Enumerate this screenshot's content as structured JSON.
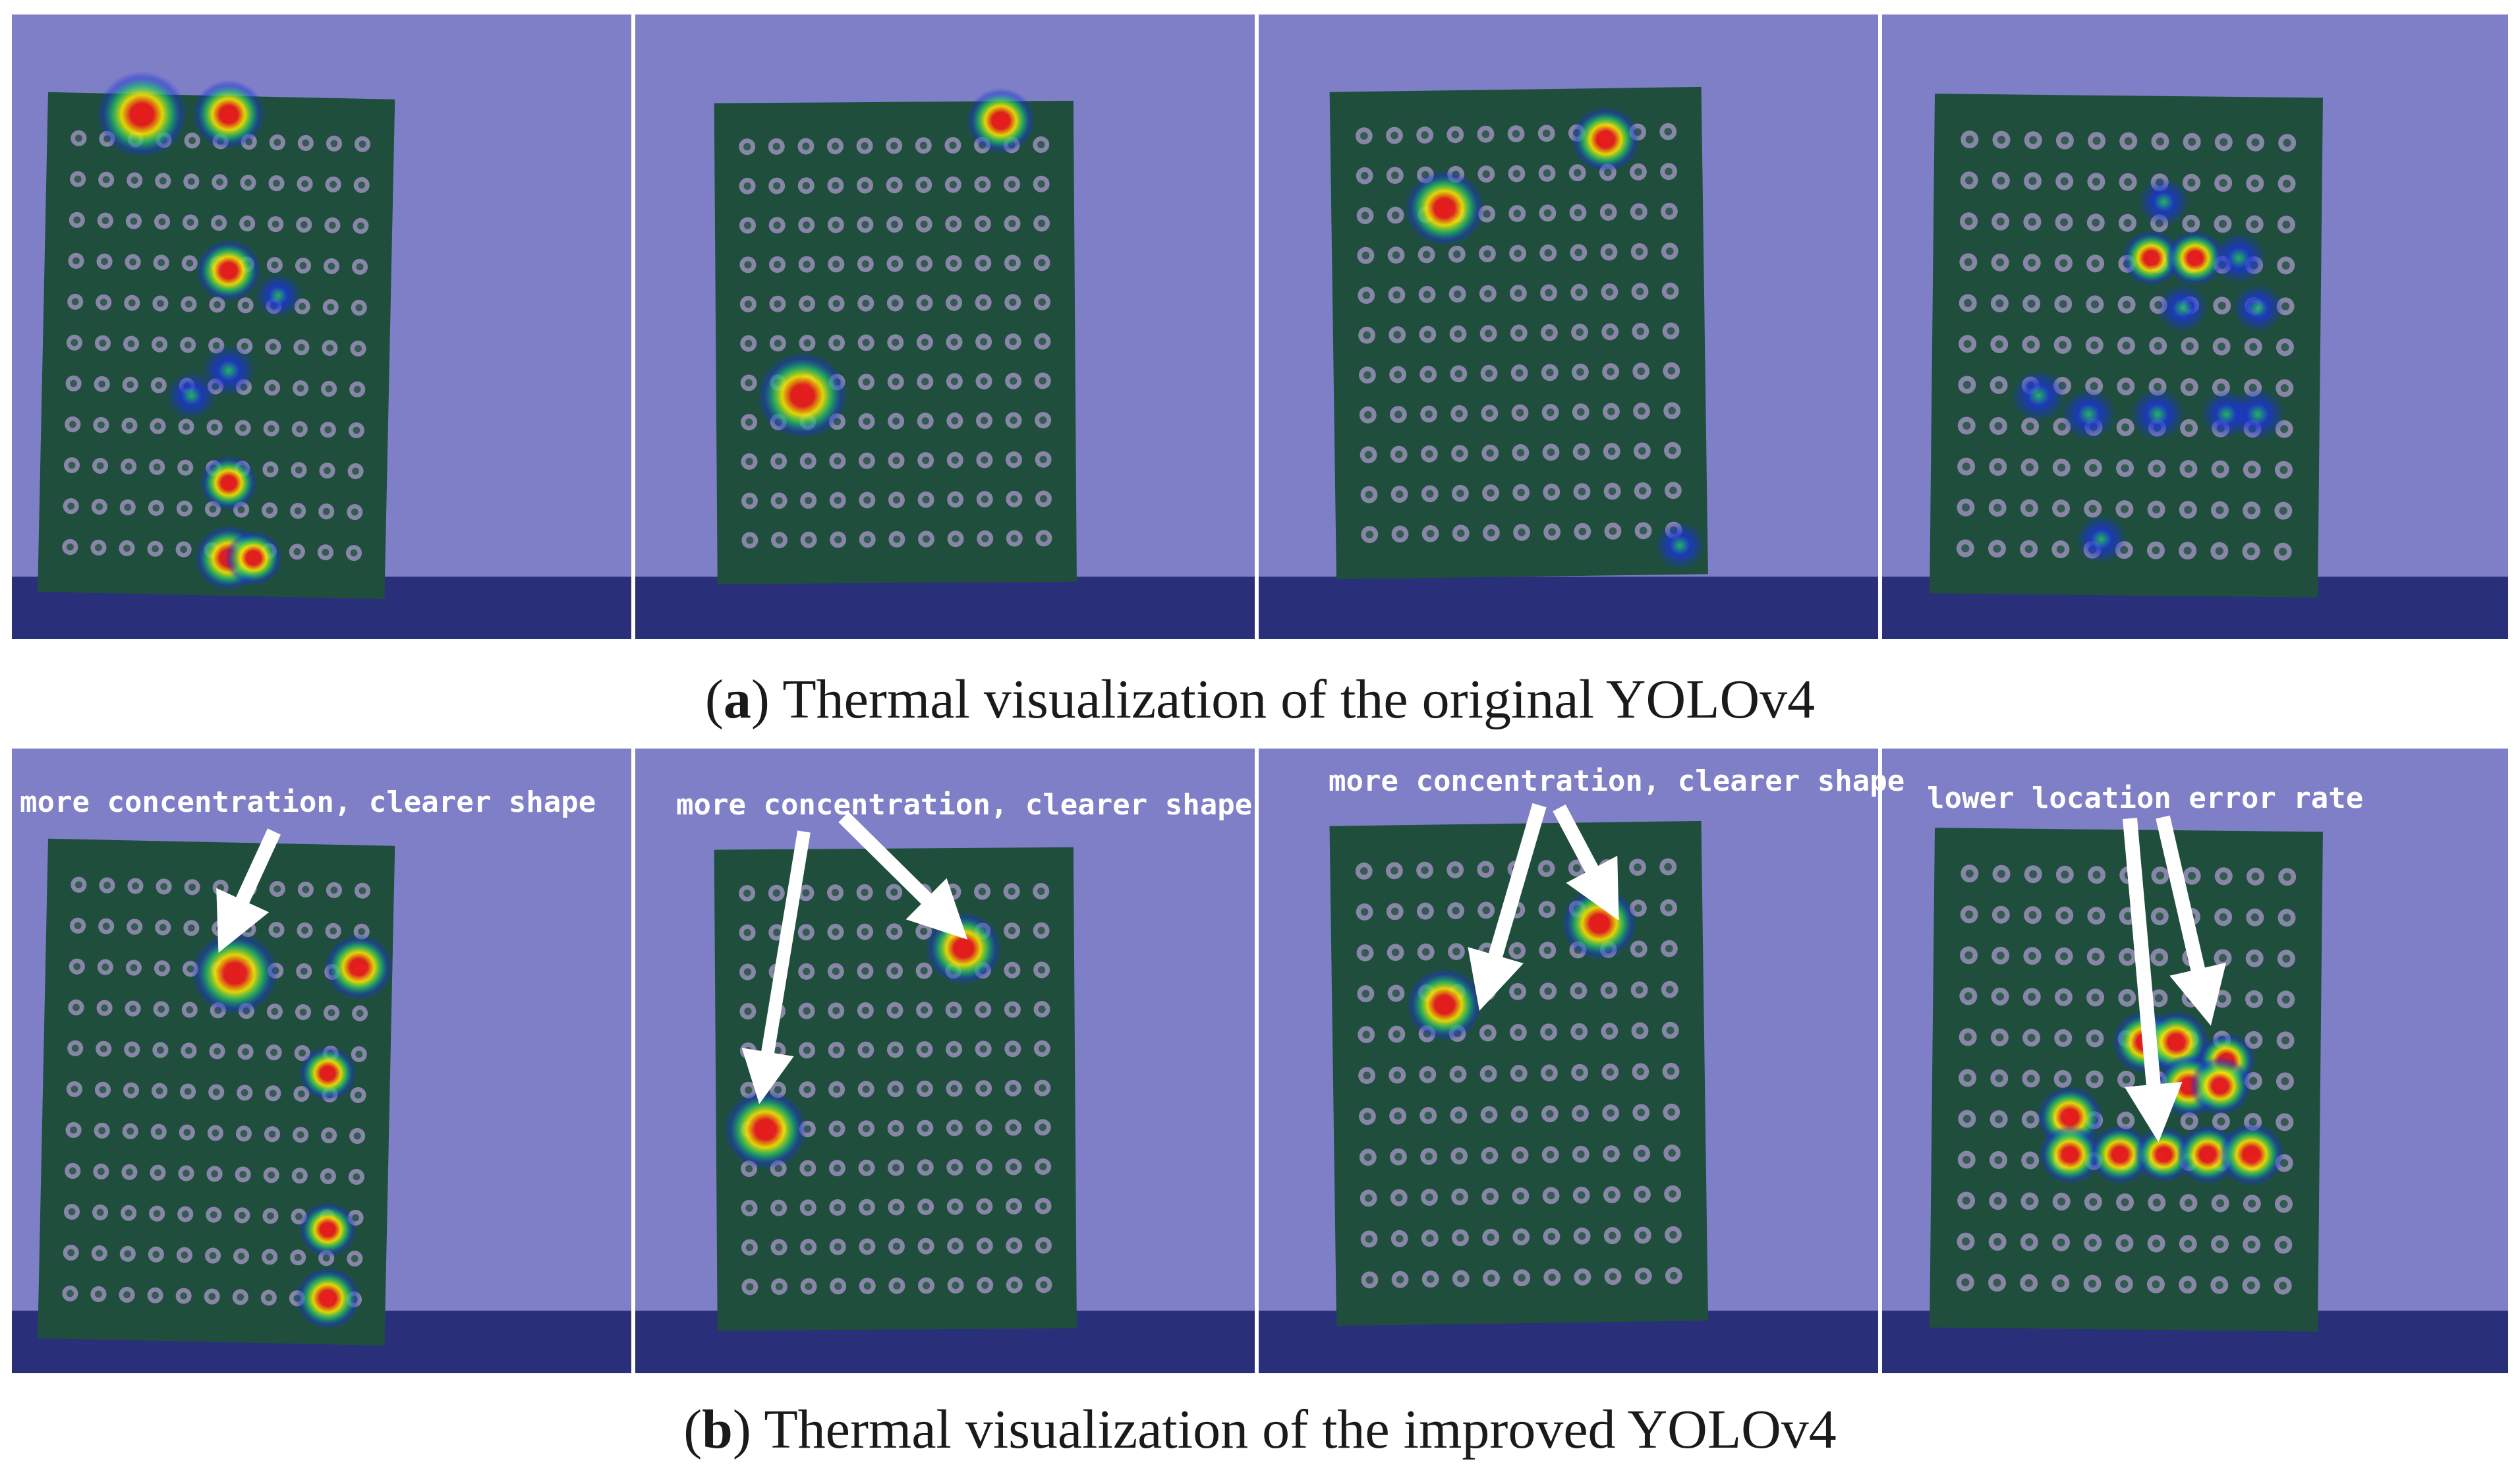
{
  "figure": {
    "captions": {
      "a": {
        "letter": "a",
        "text": ") Thermal visualization of the original YOLOv4"
      },
      "b": {
        "letter": "b",
        "text": ") Thermal visualization of the improved YOLOv4"
      }
    },
    "annotations": [
      "more concentration, clearer shape",
      "more concentration, clearer shape",
      "more concentration, clearer shape",
      "lower location error rate"
    ],
    "colors": {
      "overlay_background": "#7f7fc8",
      "board": "#1f4f3c",
      "bottom_band": "#2a2f7a",
      "pad": "#9a8fb8",
      "hot_core": "#e81c1c",
      "hot_mid": "#f5e600",
      "hot_outer": "#23c06a",
      "cold": "#1a33d8"
    },
    "rows": {
      "a": {
        "hotspots": [
          [
            [
              0.21,
              0.16,
              1.6
            ],
            [
              0.35,
              0.16,
              1.1
            ],
            [
              0.35,
              0.41,
              0.9
            ],
            [
              0.35,
              0.57,
              0.6
            ],
            [
              0.29,
              0.61,
              0.5
            ],
            [
              0.35,
              0.75,
              0.7
            ],
            [
              0.35,
              0.87,
              1.0
            ],
            [
              0.39,
              0.87,
              0.7
            ],
            [
              0.43,
              0.45,
              0.4
            ]
          ],
          [
            [
              0.27,
              0.61,
              1.6
            ],
            [
              0.59,
              0.17,
              1.0
            ]
          ],
          [
            [
              0.3,
              0.31,
              1.3
            ],
            [
              0.56,
              0.2,
              1.0
            ],
            [
              0.68,
              0.85,
              0.5
            ]
          ],
          [
            [
              0.45,
              0.3,
              0.5
            ],
            [
              0.43,
              0.39,
              0.7
            ],
            [
              0.5,
              0.39,
              0.7
            ],
            [
              0.57,
              0.39,
              0.6
            ],
            [
              0.6,
              0.47,
              0.5
            ],
            [
              0.48,
              0.47,
              0.5
            ],
            [
              0.25,
              0.61,
              0.6
            ],
            [
              0.33,
              0.64,
              0.6
            ],
            [
              0.44,
              0.64,
              0.6
            ],
            [
              0.55,
              0.64,
              0.5
            ],
            [
              0.6,
              0.64,
              0.6
            ],
            [
              0.35,
              0.84,
              0.5
            ]
          ]
        ]
      },
      "b": {
        "hotspots": [
          [
            [
              0.36,
              0.36,
              1.5
            ],
            [
              0.56,
              0.35,
              1.0
            ],
            [
              0.51,
              0.52,
              0.7
            ],
            [
              0.51,
              0.77,
              0.7
            ],
            [
              0.51,
              0.88,
              0.9
            ]
          ],
          [
            [
              0.21,
              0.61,
              1.4
            ],
            [
              0.53,
              0.32,
              1.2
            ]
          ],
          [
            [
              0.3,
              0.41,
              1.2
            ],
            [
              0.55,
              0.28,
              1.2
            ]
          ],
          [
            [
              0.42,
              0.47,
              0.9
            ],
            [
              0.47,
              0.47,
              0.9
            ],
            [
              0.55,
              0.5,
              0.7
            ],
            [
              0.49,
              0.54,
              0.9
            ],
            [
              0.54,
              0.54,
              0.8
            ],
            [
              0.3,
              0.59,
              0.9
            ],
            [
              0.3,
              0.65,
              0.8
            ],
            [
              0.38,
              0.65,
              0.8
            ],
            [
              0.45,
              0.65,
              0.7
            ],
            [
              0.52,
              0.65,
              0.8
            ],
            [
              0.59,
              0.65,
              0.9
            ]
          ]
        ]
      }
    }
  }
}
